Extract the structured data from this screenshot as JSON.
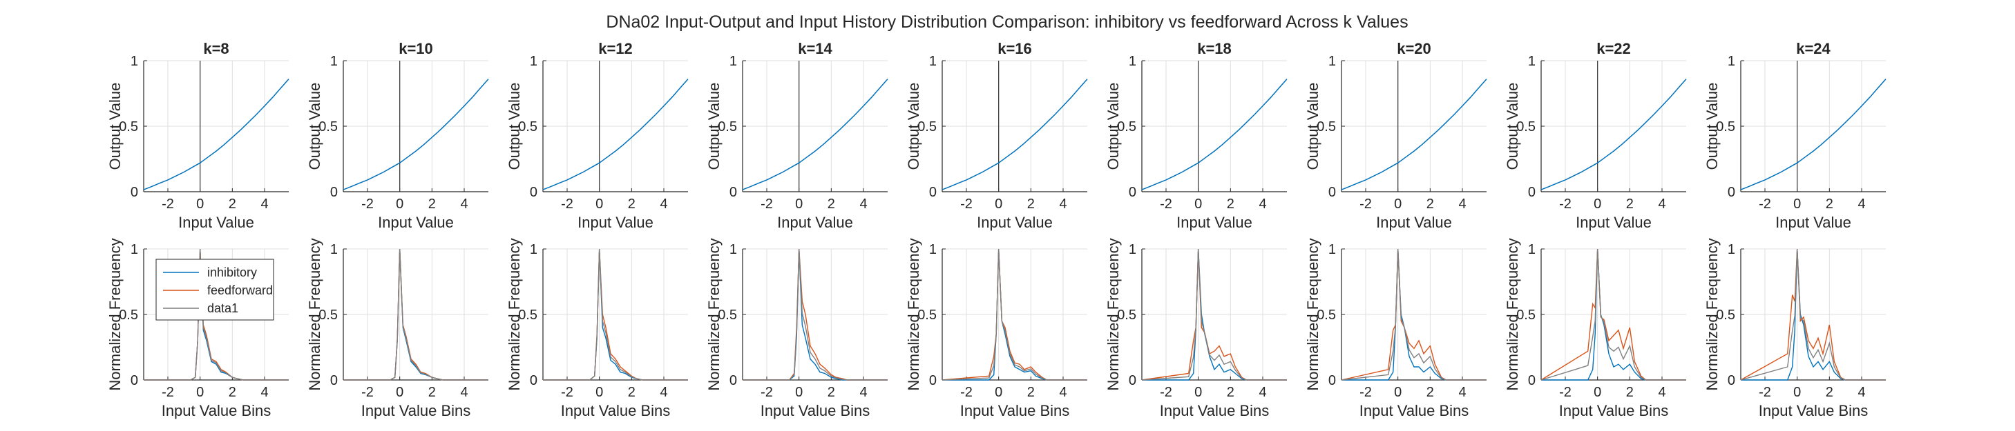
{
  "figure": {
    "title": "DNa02 Input-Output and Input History Distribution Comparison: inhibitory vs feedforward Across k Values"
  },
  "colors": {
    "inhibitory": "#0072BD",
    "feedforward": "#D95319",
    "data1": "#7F7F7F",
    "io_curve": "#0072BD",
    "zero_line": "#404040",
    "grid": "#DFDFDF",
    "axis": "#262626"
  },
  "chart_data": [
    {
      "type": "line",
      "role": "input-output",
      "k_values": [
        "k=8",
        "k=10",
        "k=12",
        "k=14",
        "k=16",
        "k=18",
        "k=20",
        "k=22",
        "k=24"
      ],
      "xlabel": "Input Value",
      "ylabel": "Output Value",
      "xlim": [
        -3.5,
        5.5
      ],
      "ylim": [
        0,
        1
      ],
      "xticks": [
        -2,
        0,
        2,
        4
      ],
      "xtick_labels": [
        "-2",
        "0",
        "2",
        "4"
      ],
      "yticks": [
        0,
        0.5,
        1
      ],
      "ytick_labels": [
        "0",
        "0.5",
        "1"
      ],
      "grid": true,
      "vertical_line_x": 0,
      "x": [
        -3.5,
        -3,
        -2.5,
        -2,
        -1.5,
        -1,
        -0.5,
        0,
        0.5,
        1,
        1.5,
        2,
        2.5,
        3,
        3.5,
        4,
        4.5,
        5,
        5.5
      ],
      "y": [
        0.015,
        0.04,
        0.065,
        0.09,
        0.12,
        0.15,
        0.185,
        0.22,
        0.265,
        0.31,
        0.36,
        0.415,
        0.47,
        0.53,
        0.59,
        0.655,
        0.72,
        0.79,
        0.86
      ]
    },
    {
      "type": "line",
      "role": "input-history-distribution",
      "k_values": [
        "k=8",
        "k=10",
        "k=12",
        "k=14",
        "k=16",
        "k=18",
        "k=20",
        "k=22",
        "k=24"
      ],
      "xlabel": "Input Value Bins",
      "ylabel": "Normalized Frequency",
      "xlim": [
        -3.5,
        5.5
      ],
      "ylim": [
        0,
        1
      ],
      "xticks": [
        -2,
        0,
        2,
        4
      ],
      "xtick_labels": [
        "-2",
        "0",
        "2",
        "4"
      ],
      "yticks": [
        0,
        0.5,
        1
      ],
      "ytick_labels": [
        "0",
        "0.5",
        "1"
      ],
      "grid": true,
      "legend": {
        "location": "top-left",
        "entries": [
          "inhibitory",
          "feedforward",
          "data1"
        ]
      },
      "x": [
        -3.5,
        -0.6,
        -0.3,
        -0.15,
        0,
        0.2,
        0.4,
        0.7,
        1.0,
        1.3,
        1.6,
        2.0,
        2.3,
        2.7,
        3.0,
        5.5
      ],
      "panels": [
        {
          "inhibitory": [
            0,
            0,
            0.02,
            0.3,
            1,
            0.38,
            0.3,
            0.14,
            0.12,
            0.06,
            0.05,
            0.02,
            0.01,
            0,
            0,
            0
          ],
          "feedforward": [
            0,
            0,
            0.02,
            0.3,
            1,
            0.42,
            0.34,
            0.16,
            0.14,
            0.08,
            0.06,
            0.02,
            0.01,
            0,
            0,
            0
          ]
        },
        {
          "inhibitory": [
            0,
            0,
            0.02,
            0.3,
            1,
            0.4,
            0.3,
            0.14,
            0.1,
            0.05,
            0.04,
            0.02,
            0.01,
            0,
            0,
            0
          ],
          "feedforward": [
            0,
            0,
            0.02,
            0.32,
            1,
            0.42,
            0.33,
            0.16,
            0.12,
            0.06,
            0.05,
            0.02,
            0.01,
            0,
            0,
            0
          ]
        },
        {
          "inhibitory": [
            0,
            0,
            0.03,
            0.32,
            1,
            0.4,
            0.32,
            0.15,
            0.12,
            0.06,
            0.05,
            0.02,
            0.01,
            0,
            0,
            0
          ],
          "feedforward": [
            0,
            0,
            0.03,
            0.35,
            1,
            0.5,
            0.4,
            0.2,
            0.16,
            0.1,
            0.07,
            0.03,
            0.01,
            0,
            0,
            0
          ]
        },
        {
          "inhibitory": [
            0,
            0,
            0.03,
            0.33,
            1,
            0.42,
            0.32,
            0.16,
            0.12,
            0.06,
            0.05,
            0.02,
            0.01,
            0,
            0,
            0
          ],
          "feedforward": [
            0,
            0,
            0.05,
            0.4,
            1,
            0.6,
            0.5,
            0.26,
            0.2,
            0.12,
            0.09,
            0.04,
            0.02,
            0.01,
            0,
            0
          ]
        },
        {
          "inhibitory": [
            0,
            0,
            0.04,
            0.35,
            1,
            0.45,
            0.35,
            0.18,
            0.1,
            0.08,
            0.06,
            0.07,
            0.03,
            0.01,
            0,
            0
          ],
          "feedforward": [
            0,
            0.03,
            0.18,
            0.35,
            1,
            0.45,
            0.4,
            0.22,
            0.13,
            0.12,
            0.08,
            0.1,
            0.06,
            0.02,
            0,
            0
          ]
        },
        {
          "inhibitory": [
            0,
            0,
            0.05,
            0.38,
            1,
            0.5,
            0.35,
            0.18,
            0.08,
            0.12,
            0.06,
            0.08,
            0.05,
            0.01,
            0,
            0
          ],
          "feedforward": [
            0,
            0.05,
            0.3,
            0.4,
            1,
            0.4,
            0.36,
            0.2,
            0.22,
            0.26,
            0.18,
            0.2,
            0.1,
            0.02,
            0,
            0
          ]
        },
        {
          "inhibitory": [
            0,
            0,
            0.06,
            0.4,
            1,
            0.5,
            0.4,
            0.18,
            0.1,
            0.1,
            0.06,
            0.1,
            0.05,
            0.01,
            0,
            0
          ],
          "feedforward": [
            0,
            0.08,
            0.38,
            0.42,
            1,
            0.45,
            0.4,
            0.28,
            0.24,
            0.3,
            0.2,
            0.26,
            0.12,
            0.02,
            0,
            0
          ]
        },
        {
          "inhibitory": [
            0,
            0,
            0.08,
            0.35,
            1,
            0.5,
            0.42,
            0.2,
            0.1,
            0.12,
            0.08,
            0.12,
            0.06,
            0.01,
            0,
            0
          ],
          "feedforward": [
            0,
            0.22,
            0.58,
            0.55,
            1,
            0.48,
            0.46,
            0.3,
            0.34,
            0.38,
            0.24,
            0.4,
            0.14,
            0.03,
            0,
            0
          ]
        },
        {
          "inhibitory": [
            0,
            0,
            0.1,
            0.38,
            1,
            0.5,
            0.42,
            0.18,
            0.1,
            0.14,
            0.08,
            0.14,
            0.06,
            0.01,
            0,
            0
          ],
          "feedforward": [
            0,
            0.2,
            0.65,
            0.6,
            1,
            0.45,
            0.48,
            0.3,
            0.24,
            0.32,
            0.2,
            0.42,
            0.14,
            0.02,
            0,
            0
          ]
        }
      ]
    }
  ]
}
